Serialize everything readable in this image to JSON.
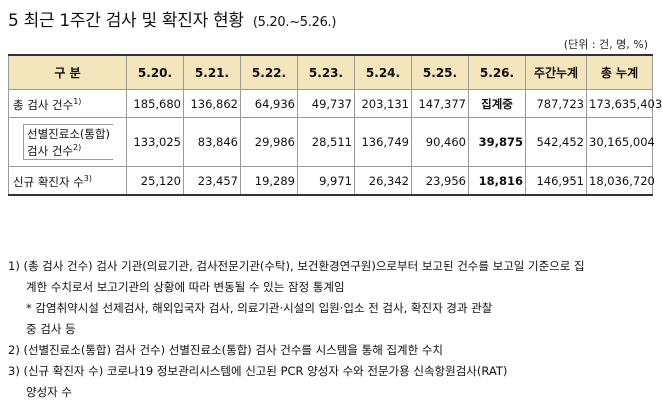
{
  "title": {
    "main": "5 최근 1주간 검사 및 확진자 현황",
    "range": "(5.20.~5.26.)"
  },
  "unit": "(단위 : 건, 명, %)",
  "table": {
    "headers": [
      "구 분",
      "5.20.",
      "5.21.",
      "5.22.",
      "5.23.",
      "5.24.",
      "5.25.",
      "5.26.",
      "주간누계",
      "총 누계"
    ],
    "rows": [
      {
        "label": "총 검사 건수",
        "sup": "1)",
        "values": [
          "185,680",
          "136,862",
          "64,936",
          "49,737",
          "203,131",
          "147,377",
          "집계중",
          "787,723",
          "173,635,403"
        ]
      },
      {
        "label_line1": "선별진료소(통합)",
        "label_line2": "검사 건수",
        "sup": "2)",
        "values": [
          "133,025",
          "83,846",
          "29,986",
          "28,511",
          "136,749",
          "90,460",
          "39,875",
          "542,452",
          "30,165,004"
        ]
      },
      {
        "label": "신규 확진자 수",
        "sup": "3)",
        "values": [
          "25,120",
          "23,457",
          "19,289",
          "9,971",
          "26,342",
          "23,956",
          "18,816",
          "146,951",
          "18,036,720"
        ]
      }
    ]
  },
  "notes": [
    {
      "type": "note",
      "text": "1) (총 검사 건수) 검사 기관(의료기관, 검사전문기관(수탁), 보건환경연구원)으로부터 보고된 건수를 보고일 기준으로 집"
    },
    {
      "type": "cont",
      "text": "계한 수치로서 보고기관의 상황에 따라 변동될 수 있는 잠정 통계임"
    },
    {
      "type": "star",
      "text": "* 감염취약시설 선제검사, 해외입국자 검사, 의료기관·시설의 입원·입소 전 검사, 확진자 경과 관찰"
    },
    {
      "type": "cont",
      "text": "중 검사 등"
    },
    {
      "type": "note",
      "text": "2) (선별진료소(통합) 검사 건수) 선별진료소(통합) 검사 건수를 시스템을 통해 집계한 수치"
    },
    {
      "type": "note",
      "text": "3) (신규 확진자 수) 코로나19 정보관리시스템에 신고된 PCR 양성자 수와 전문가용 신속항원검사(RAT)"
    },
    {
      "type": "cont",
      "text": "양성자 수"
    }
  ]
}
